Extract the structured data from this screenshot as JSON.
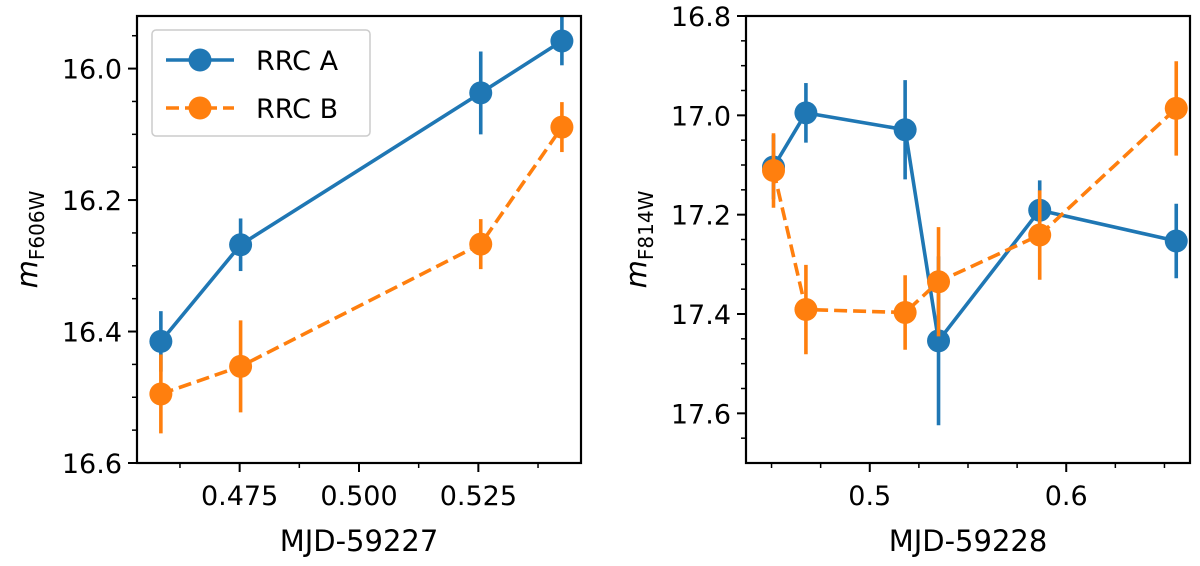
{
  "chart_data": [
    {
      "type": "line",
      "xlabel": "MJD-59227",
      "ylabel_main": "m",
      "ylabel_sub": "F606W",
      "xlim": [
        0.4535,
        0.5465
      ],
      "ylim": [
        16.6,
        15.92
      ],
      "y_inverted": true,
      "xticks": [
        0.475,
        0.5,
        0.525
      ],
      "xtick_labels": [
        "0.475",
        "0.500",
        "0.525"
      ],
      "xminor": [
        0.4625,
        0.4875,
        0.5125,
        0.5375
      ],
      "yticks": [
        16.0,
        16.2,
        16.4,
        16.6
      ],
      "ytick_labels": [
        "16.0",
        "16.2",
        "16.4",
        "16.6"
      ],
      "yminor": [
        15.95,
        16.05,
        16.1,
        16.15,
        16.25,
        16.3,
        16.35,
        16.45,
        16.5,
        16.55
      ],
      "legend": {
        "placement": "top-left",
        "entries": [
          "RRC A",
          "RRC B"
        ]
      },
      "series": [
        {
          "name": "RRC A",
          "color": "#1f77b4",
          "linestyle": "solid",
          "x": [
            0.4585,
            0.4752,
            0.5255,
            0.5425
          ],
          "y": [
            16.415,
            16.268,
            16.037,
            15.958
          ],
          "yerr": [
            0.046,
            0.04,
            0.063,
            0.037
          ]
        },
        {
          "name": "RRC B",
          "color": "#ff7f0e",
          "linestyle": "dashed",
          "x": [
            0.4585,
            0.4752,
            0.5255,
            0.5425
          ],
          "y": [
            16.495,
            16.453,
            16.267,
            16.089
          ],
          "yerr": [
            0.06,
            0.07,
            0.038,
            0.038
          ]
        }
      ]
    },
    {
      "type": "line",
      "xlabel": "MJD-59228",
      "ylabel_main": "m",
      "ylabel_sub": "F814W",
      "xlim": [
        0.437,
        0.663
      ],
      "ylim": [
        17.7,
        16.8
      ],
      "y_inverted": true,
      "xticks": [
        0.5,
        0.6
      ],
      "xtick_labels": [
        "0.5",
        "0.6"
      ],
      "xminor": [
        0.45,
        0.475,
        0.525,
        0.55,
        0.575,
        0.625,
        0.65
      ],
      "yticks": [
        16.8,
        17.0,
        17.2,
        17.4,
        17.6
      ],
      "ytick_labels": [
        "16.8",
        "17.0",
        "17.2",
        "17.4",
        "17.6"
      ],
      "yminor": [
        16.85,
        16.9,
        16.95,
        17.05,
        17.1,
        17.15,
        17.25,
        17.3,
        17.35,
        17.45,
        17.5,
        17.55,
        17.65
      ],
      "legend": null,
      "series": [
        {
          "name": "RRC A",
          "color": "#1f77b4",
          "linestyle": "solid",
          "x": [
            0.451,
            0.4675,
            0.518,
            0.535,
            0.5865,
            0.656
          ],
          "y": [
            17.104,
            16.995,
            17.029,
            17.454,
            17.191,
            17.253
          ],
          "yerr": [
            0.065,
            0.06,
            0.1,
            0.17,
            0.06,
            0.075
          ]
        },
        {
          "name": "RRC B",
          "color": "#ff7f0e",
          "linestyle": "dashed",
          "x": [
            0.451,
            0.4675,
            0.518,
            0.535,
            0.5865,
            0.656
          ],
          "y": [
            17.111,
            17.391,
            17.397,
            17.335,
            17.241,
            16.986
          ],
          "yerr": [
            0.075,
            0.09,
            0.075,
            0.11,
            0.09,
            0.095
          ]
        }
      ]
    }
  ]
}
